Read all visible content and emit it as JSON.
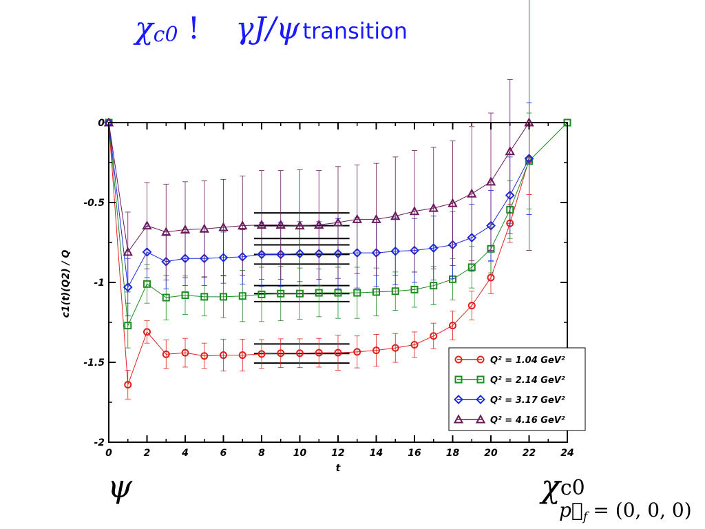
{
  "slide": {
    "title_chi": "χ",
    "title_chi_sub": "c0",
    "title_arrow": "!",
    "title_gamma": "γJ/ψ",
    "title_word": "transition",
    "left_state": "ψ",
    "right_state": "χ",
    "right_state_sub": "c0",
    "momentum_label": "p⃗",
    "momentum_sub": "f",
    "momentum_value": "= (0, 0, 0)"
  },
  "chart_data": {
    "type": "line",
    "title": "",
    "xlabel": "t",
    "ylabel": "c1(t)(Q2) / Q",
    "xlim": [
      0,
      24
    ],
    "ylim": [
      -2,
      0
    ],
    "x_ticks": [
      "0",
      "2",
      "4",
      "6",
      "8",
      "10",
      "12",
      "14",
      "16",
      "18",
      "20",
      "22",
      "24"
    ],
    "y_ticks": [
      "0",
      "-0.5",
      "-1",
      "-1.5",
      "-2"
    ],
    "legend_position": "bottom-right",
    "grid": false,
    "fit_bands": {
      "x_range": [
        7.6,
        12.6
      ],
      "lines": [
        -0.565,
        -0.645,
        -0.725,
        -0.765,
        -0.825,
        -0.885,
        -1.02,
        -1.07,
        -1.12,
        -1.385,
        -1.445,
        -1.505
      ]
    },
    "series": [
      {
        "name": "Q² = 1.04 GeV²",
        "color": "#e0201c",
        "marker": "circle",
        "x": [
          0,
          1,
          2,
          3,
          4,
          5,
          6,
          7,
          8,
          9,
          10,
          11,
          12,
          13,
          14,
          15,
          16,
          17,
          18,
          19,
          20,
          21,
          22
        ],
        "y": [
          0,
          -1.64,
          -1.31,
          -1.45,
          -1.44,
          -1.46,
          -1.455,
          -1.455,
          -1.448,
          -1.443,
          -1.443,
          -1.44,
          -1.44,
          -1.435,
          -1.425,
          -1.41,
          -1.39,
          -1.335,
          -1.27,
          -1.145,
          -0.97,
          -0.63,
          -0.23
        ],
        "err": [
          0,
          0.09,
          0.07,
          0.09,
          0.09,
          0.08,
          0.1,
          0.1,
          0.09,
          0.09,
          0.09,
          0.09,
          0.11,
          0.1,
          0.1,
          0.09,
          0.08,
          0.08,
          0.09,
          0.09,
          0.1,
          0.12,
          0.22
        ]
      },
      {
        "name": "Q² = 2.14 GeV²",
        "color": "#1f8a22",
        "marker": "square",
        "x": [
          0,
          1,
          2,
          3,
          4,
          5,
          6,
          7,
          8,
          9,
          10,
          11,
          12,
          13,
          14,
          15,
          16,
          17,
          18,
          19,
          20,
          21,
          22,
          24
        ],
        "y": [
          0,
          -1.27,
          -1.01,
          -1.095,
          -1.08,
          -1.09,
          -1.09,
          -1.085,
          -1.075,
          -1.07,
          -1.07,
          -1.065,
          -1.065,
          -1.065,
          -1.06,
          -1.055,
          -1.045,
          -1.02,
          -0.98,
          -0.905,
          -0.79,
          -0.545,
          -0.24,
          0
        ],
        "err": [
          0,
          0.14,
          0.12,
          0.14,
          0.12,
          0.12,
          0.13,
          0.16,
          0.17,
          0.17,
          0.16,
          0.15,
          0.16,
          0.16,
          0.15,
          0.12,
          0.11,
          0.12,
          0.13,
          0.13,
          0.15,
          0.18,
          0.3,
          0
        ]
      },
      {
        "name": "Q² = 3.17 GeV²",
        "color": "#1c2ae0",
        "marker": "diamond",
        "x": [
          0,
          1,
          2,
          3,
          4,
          5,
          6,
          7,
          8,
          9,
          10,
          11,
          12,
          13,
          14,
          15,
          16,
          17,
          18,
          19,
          20,
          21,
          22
        ],
        "y": [
          0,
          -1.03,
          -0.81,
          -0.87,
          -0.85,
          -0.85,
          -0.845,
          -0.84,
          -0.825,
          -0.825,
          -0.82,
          -0.82,
          -0.82,
          -0.815,
          -0.815,
          -0.805,
          -0.8,
          -0.785,
          -0.765,
          -0.72,
          -0.645,
          -0.455,
          -0.225
        ],
        "err": [
          0,
          0.18,
          0.16,
          0.17,
          0.17,
          0.17,
          0.16,
          0.17,
          0.2,
          0.2,
          0.2,
          0.2,
          0.22,
          0.22,
          0.21,
          0.21,
          0.2,
          0.2,
          0.21,
          0.21,
          0.22,
          0.24,
          0.35
        ]
      },
      {
        "name": "Q² = 4.16 GeV²",
        "color": "#6a1a5a",
        "marker": "triangle",
        "x": [
          0,
          1,
          2,
          3,
          4,
          5,
          6,
          7,
          8,
          9,
          10,
          11,
          12,
          13,
          14,
          15,
          16,
          17,
          18,
          19,
          20,
          21,
          22
        ],
        "y": [
          0,
          -0.81,
          -0.645,
          -0.685,
          -0.67,
          -0.665,
          -0.655,
          -0.645,
          -0.64,
          -0.64,
          -0.645,
          -0.64,
          -0.625,
          -0.605,
          -0.605,
          -0.585,
          -0.555,
          -0.535,
          -0.505,
          -0.445,
          -0.37,
          -0.18,
          0
        ],
        "err": [
          0,
          0.25,
          0.27,
          0.3,
          0.3,
          0.3,
          0.3,
          0.31,
          0.34,
          0.34,
          0.35,
          0.34,
          0.35,
          0.34,
          0.35,
          0.37,
          0.38,
          0.38,
          0.39,
          0.42,
          0.43,
          0.45,
          0.8
        ]
      }
    ]
  }
}
